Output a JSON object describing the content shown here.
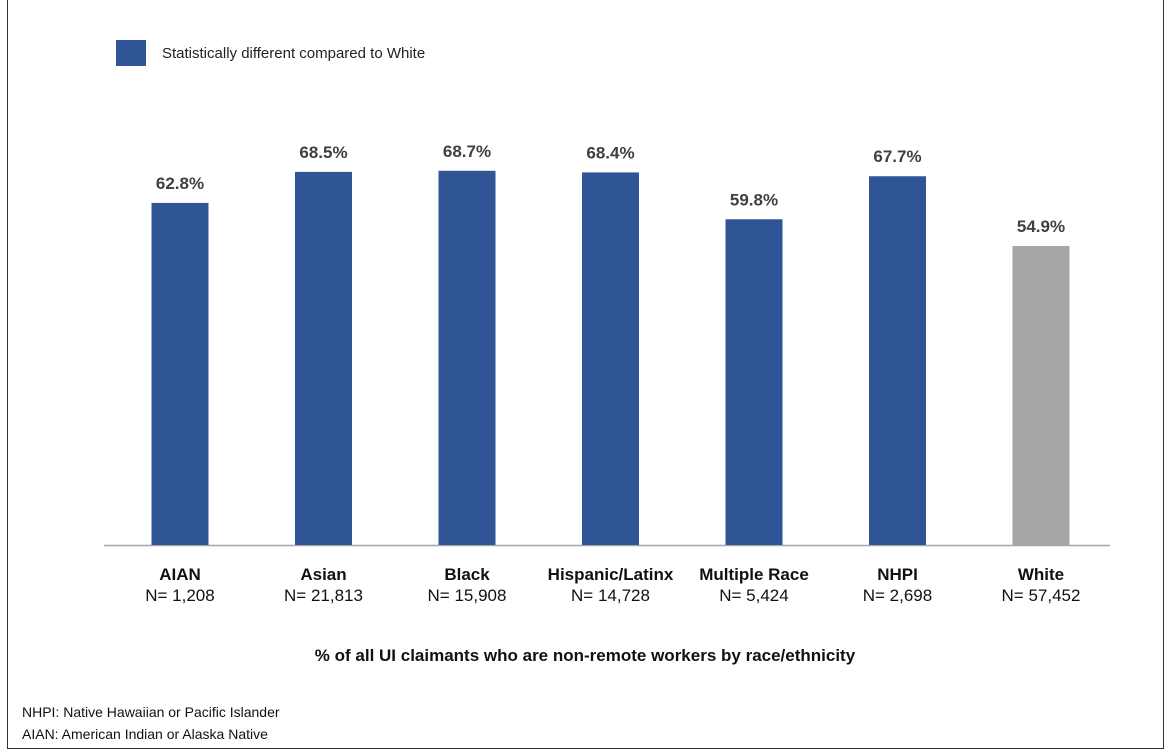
{
  "chart_data": {
    "type": "bar",
    "categories": [
      "AIAN",
      "Asian",
      "Black",
      "Hispanic/Latinx",
      "Multiple Race",
      "NHPI",
      "White"
    ],
    "sample_sizes": [
      "N= 1,208",
      "N= 21,813",
      "N= 15,908",
      "N= 14,728",
      "N= 5,424",
      "N= 2,698",
      "N= 57,452"
    ],
    "values": [
      62.8,
      68.5,
      68.7,
      68.4,
      59.8,
      67.7,
      54.9
    ],
    "value_labels": [
      "62.8%",
      "68.5%",
      "68.7%",
      "68.4%",
      "59.8%",
      "67.7%",
      "54.9%"
    ],
    "statistically_different": [
      true,
      true,
      true,
      true,
      true,
      true,
      false
    ],
    "colors": {
      "different": "#2F5597",
      "reference": "#A6A6A6",
      "axis": "#A6A6A6"
    },
    "xlabel": "% of all UI claimants who are non-remote workers by race/ethnicity",
    "ylabel": "",
    "ylim": [
      0,
      100
    ],
    "legend": {
      "position": "top-left",
      "label": "Statistically different compared to White"
    },
    "grid": false
  },
  "notes": [
    "NHPI: Native Hawaiian or Pacific Islander",
    "AIAN: American Indian or Alaska Native"
  ]
}
